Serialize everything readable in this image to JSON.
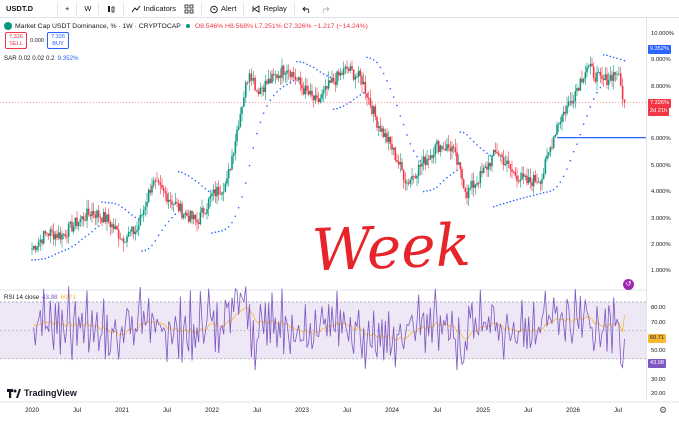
{
  "toolbar": {
    "symbol": "USDT.D",
    "add_symbol": "+",
    "interval": "W",
    "indicators_label": "Indicators",
    "layout_icon": "grid-icon",
    "alert_label": "Alert",
    "replay_label": "Replay",
    "undo_icon": "undo-icon",
    "redo_icon": "redo-icon"
  },
  "legend": {
    "title": "Market Cap USDT Dominance, % · 1W · CRYPTOCAP",
    "ohlc": "O8.546% H8.568% L7.251% C7.326% −1.217 (−14.24%)",
    "sell_price": "7.326",
    "sell_label": "SELL",
    "spread": "0.000",
    "buy_price": "7.326",
    "buy_label": "BUY"
  },
  "sar": {
    "label": "SAR 0.02 0.02 0.2",
    "value": "9.352%"
  },
  "rsi": {
    "label": "RSI 14 close",
    "value1": "43.98",
    "value2": "60.71"
  },
  "price_scale": {
    "ticks": [
      "10.000%",
      "9.000%",
      "8.000%",
      "7.000%",
      "6.000%",
      "5.000%",
      "4.000%",
      "3.000%",
      "2.000%",
      "1.000%"
    ],
    "sar_tag": "9.352%",
    "last_tag": "7.326%",
    "countdown": "2d 21h"
  },
  "rsi_scale": {
    "ticks": [
      "80.00",
      "70.00",
      "50.00",
      "40.00",
      "30.00",
      "20.00"
    ],
    "tag1": "60.71",
    "tag2": "43.98"
  },
  "time_scale": {
    "labels": [
      "2020",
      "Jul",
      "2021",
      "Jul",
      "2022",
      "Jul",
      "2023",
      "Jul",
      "2024",
      "Jul",
      "2025",
      "Jul",
      "2026",
      "Jul"
    ]
  },
  "annotation": {
    "text": "Week",
    "color": "#e8242b"
  },
  "branding": {
    "name": "TradingView"
  },
  "colors": {
    "up": "#089981",
    "down": "#f23645",
    "sar": "#2962ff",
    "rsi": "#7e57c2",
    "rsi_ma": "#f7b935",
    "rsi_band": "#ede7f6"
  },
  "chart_data": {
    "type": "candlestick",
    "title": "Market Cap USDT Dominance, % · 1W · CRYPTOCAP",
    "ylim": [
      0.5,
      10.3
    ],
    "close_path": [
      [
        "2020-01",
        1.8
      ],
      [
        "2020-03",
        2.4
      ],
      [
        "2020-05",
        2.3
      ],
      [
        "2020-07",
        2.8
      ],
      [
        "2020-09",
        3.2
      ],
      [
        "2020-11",
        2.9
      ],
      [
        "2021-01",
        2.2
      ],
      [
        "2021-03",
        2.5
      ],
      [
        "2021-05",
        4.3
      ],
      [
        "2021-07",
        3.8
      ],
      [
        "2021-09",
        3.2
      ],
      [
        "2021-11",
        2.8
      ],
      [
        "2022-01",
        3.8
      ],
      [
        "2022-03",
        4.3
      ],
      [
        "2022-05",
        7.3
      ],
      [
        "2022-06",
        8.6
      ],
      [
        "2022-07",
        7.8
      ],
      [
        "2022-09",
        8.2
      ],
      [
        "2022-11",
        8.7
      ],
      [
        "2023-01",
        7.9
      ],
      [
        "2023-03",
        7.3
      ],
      [
        "2023-05",
        8.1
      ],
      [
        "2023-07",
        8.6
      ],
      [
        "2023-09",
        8.2
      ],
      [
        "2023-11",
        6.6
      ],
      [
        "2024-01",
        5.6
      ],
      [
        "2024-03",
        4.3
      ],
      [
        "2024-05",
        5.0
      ],
      [
        "2024-07",
        5.7
      ],
      [
        "2024-09",
        5.6
      ],
      [
        "2024-11",
        3.9
      ],
      [
        "2025-01",
        4.6
      ],
      [
        "2025-03",
        5.5
      ],
      [
        "2025-05",
        4.7
      ],
      [
        "2025-07",
        4.3
      ],
      [
        "2025-09",
        4.5
      ],
      [
        "2025-11",
        6.5
      ],
      [
        "2026-01",
        7.5
      ],
      [
        "2026-03",
        8.7
      ],
      [
        "2026-05",
        8.1
      ],
      [
        "2026-07",
        8.5
      ],
      [
        "2026-08",
        7.33
      ]
    ],
    "horizontal_line": 6.0,
    "rsi": {
      "ylim": [
        20,
        82
      ],
      "upper": 70,
      "lower": 30,
      "last": 43.98,
      "ma_last": 60.71
    }
  }
}
